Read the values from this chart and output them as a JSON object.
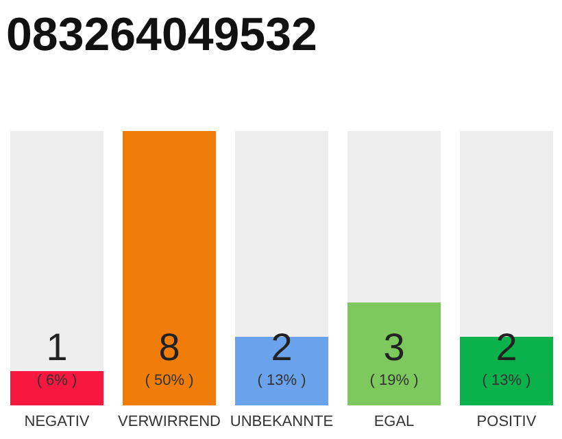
{
  "chart_data": {
    "type": "bar",
    "title": "083264049532",
    "categories": [
      "NEGATIV",
      "VERWIRREND",
      "UNBEKANNTE",
      "EGAL",
      "POSITIV"
    ],
    "values": [
      1,
      8,
      2,
      3,
      2
    ],
    "colors": [
      "#f8173e",
      "#f07d0a",
      "#6aa3ec",
      "#7dc95e",
      "#0bb14a"
    ],
    "data_labels": true,
    "annotations": [
      "( 6% )",
      "( 50% )",
      "( 13% )",
      "( 19% )",
      "( 13% )"
    ]
  }
}
